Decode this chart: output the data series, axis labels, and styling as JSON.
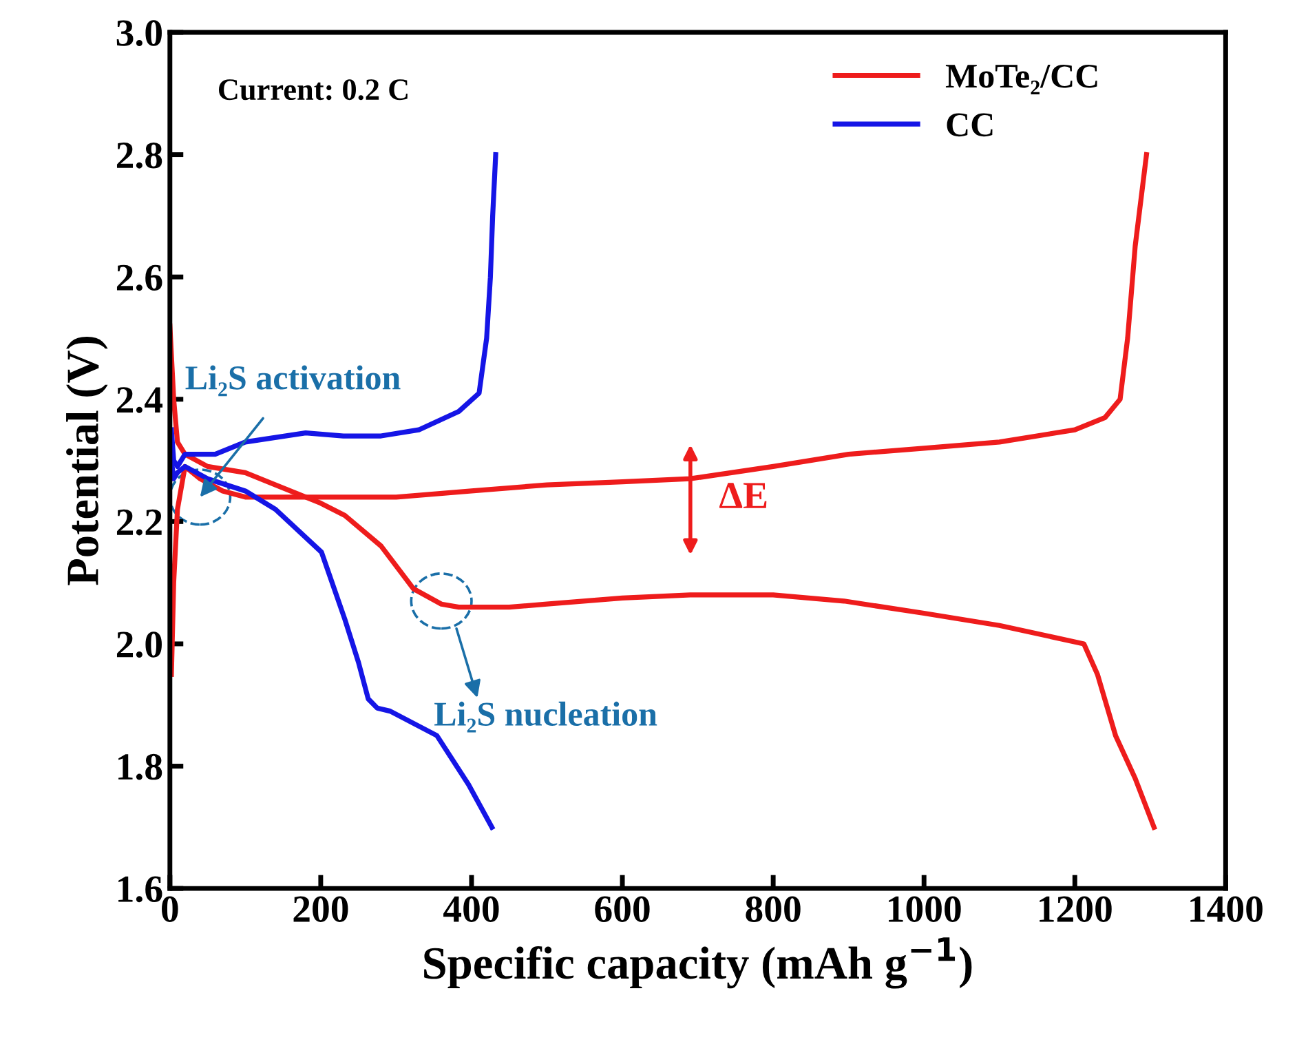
{
  "chart_data": {
    "type": "line",
    "xlabel": "Specific capacity (mAh g$^{−1}$)",
    "ylabel": "Potential (V)",
    "xlim": [
      0,
      1400
    ],
    "ylim": [
      1.6,
      3.0
    ],
    "xticks": [
      0,
      200,
      400,
      600,
      800,
      1000,
      1200,
      1400
    ],
    "yticks": [
      1.6,
      1.8,
      {
        "value": 2,
        "label": "2.0"
      },
      2.2,
      2.4,
      2.6,
      2.8,
      {
        "value": 3,
        "label": "3.0"
      }
    ],
    "grid": false,
    "legend": "top right",
    "line_style": "solid",
    "marker": "none",
    "series": [
      {
        "name": "MoTe₂/CC",
        "color": "#ee1c1c",
        "x": [
          2,
          5,
          10,
          20,
          40,
          70,
          100,
          200,
          300,
          400,
          500,
          600,
          690,
          800,
          900,
          1000,
          1100,
          1200,
          1240,
          1260,
          1270,
          1280,
          1290,
          1295
        ],
        "values": [
          1.95,
          2.1,
          2.22,
          2.29,
          2.27,
          2.25,
          2.24,
          2.24,
          2.24,
          2.25,
          2.26,
          2.265,
          2.27,
          2.29,
          2.31,
          2.32,
          2.33,
          2.35,
          2.37,
          2.4,
          2.5,
          2.65,
          2.75,
          2.8
        ]
      },
      {
        "name": null,
        "color": "#ee1c1c",
        "x": [
          0,
          5,
          10,
          20,
          50,
          100,
          140,
          200,
          232,
          280,
          323,
          360,
          383,
          450,
          500,
          600,
          690,
          800,
          894,
          1000,
          1100,
          1212,
          1230,
          1254,
          1280,
          1305
        ],
        "values": [
          2.52,
          2.4,
          2.33,
          2.31,
          2.29,
          2.28,
          2.26,
          2.23,
          2.21,
          2.16,
          2.09,
          2.065,
          2.06,
          2.06,
          2.065,
          2.075,
          2.08,
          2.08,
          2.07,
          2.05,
          2.03,
          2.0,
          1.95,
          1.85,
          1.78,
          1.7
        ]
      },
      {
        "name": "CC",
        "color": "#1515e6",
        "x": [
          2,
          5,
          10,
          20,
          30,
          60,
          100,
          180,
          230,
          280,
          330,
          383,
          410,
          420,
          425,
          428,
          432
        ],
        "values": [
          2.35,
          2.3,
          2.29,
          2.31,
          2.31,
          2.31,
          2.33,
          2.345,
          2.34,
          2.34,
          2.35,
          2.38,
          2.41,
          2.5,
          2.6,
          2.7,
          2.8
        ]
      },
      {
        "name": null,
        "color": "#1515e6",
        "x": [
          2,
          5,
          10,
          20,
          50,
          100,
          140,
          201,
          232,
          250,
          263,
          275,
          292,
          354,
          396,
          427
        ],
        "values": [
          2.3,
          2.27,
          2.28,
          2.29,
          2.27,
          2.25,
          2.22,
          2.15,
          2.04,
          1.97,
          1.91,
          1.895,
          1.89,
          1.85,
          1.77,
          1.7
        ]
      }
    ],
    "annotations": [
      "Current: 0.2 C",
      {
        "text": "Li₂S activation",
        "x": 40,
        "y": 2.24
      },
      {
        "text": "Li₂S nucleation",
        "x": 360,
        "y": 2.07
      },
      "ΔE"
    ]
  }
}
